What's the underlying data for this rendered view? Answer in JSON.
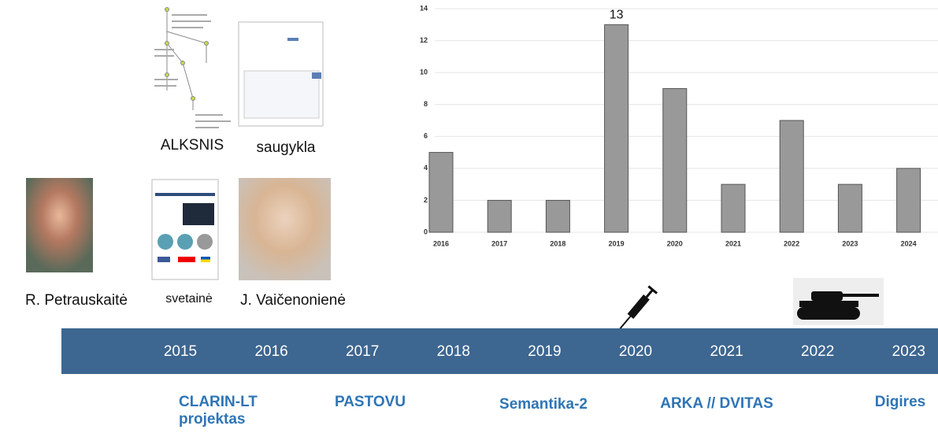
{
  "chart_data": {
    "type": "bar",
    "categories": [
      "2016",
      "2017",
      "2018",
      "2019",
      "2020",
      "2021",
      "2022",
      "2023",
      "2024"
    ],
    "values": [
      5,
      2,
      2,
      13,
      9,
      3,
      7,
      3,
      4
    ],
    "value_labels": [
      null,
      null,
      null,
      "13",
      null,
      null,
      null,
      null,
      null
    ],
    "color": "#999999",
    "ylim": [
      0,
      14
    ],
    "yticks": [
      0,
      2,
      4,
      6,
      8,
      10,
      12,
      14
    ],
    "grid": true
  },
  "captions": {
    "alksnis": "ALKSNIS",
    "saugykla": "saugykla",
    "petrauskaite": "R. Petrauskaitė",
    "svetaine": "svetainė",
    "vaicenoniene": "J. Vaičenonienė"
  },
  "timeline": {
    "years": [
      "2015",
      "2016",
      "2017",
      "2018",
      "2019",
      "2020",
      "2021",
      "2022",
      "2023"
    ],
    "projects": [
      "CLARIN-LT projektas",
      "PASTOVU",
      "Semantika-2",
      "ARKA // DVITAS",
      "Digires"
    ]
  }
}
